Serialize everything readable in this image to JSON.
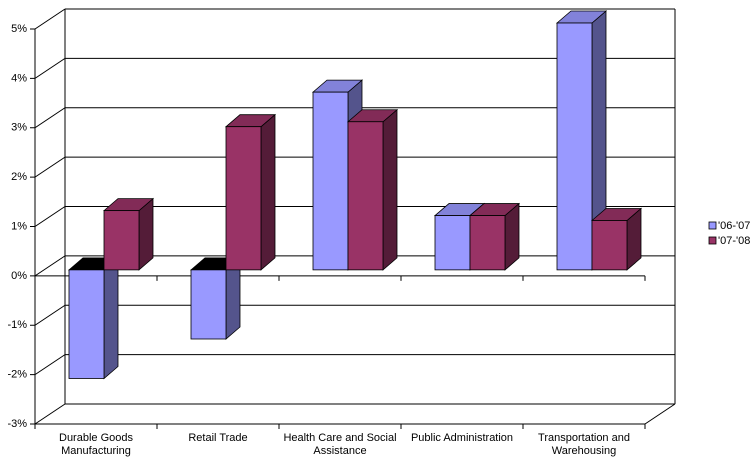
{
  "chart_data": {
    "type": "bar3d",
    "categories": [
      "Durable Goods Manufacturing",
      "Retail Trade",
      "Health Care and Social Assistance",
      "Public Administration",
      "Transportation and Warehousing"
    ],
    "series": [
      {
        "name": "'06-'07",
        "color": "#9999ff",
        "values": [
          -2.2,
          -1.4,
          3.6,
          1.1,
          5.0
        ]
      },
      {
        "name": "'07-'08",
        "color": "#993366",
        "values": [
          1.2,
          2.9,
          3.0,
          1.1,
          1.0
        ]
      }
    ],
    "ylim": [
      -3,
      5
    ],
    "yticks": [
      {
        "value": -3,
        "label": "-3%"
      },
      {
        "value": -2,
        "label": "-2%"
      },
      {
        "value": -1,
        "label": "-1%"
      },
      {
        "value": 0,
        "label": "0%"
      },
      {
        "value": 1,
        "label": "1%"
      },
      {
        "value": 2,
        "label": "2%"
      },
      {
        "value": 3,
        "label": "3%"
      },
      {
        "value": 4,
        "label": "4%"
      },
      {
        "value": 5,
        "label": "5%"
      }
    ],
    "grid": true,
    "legend": "right"
  }
}
